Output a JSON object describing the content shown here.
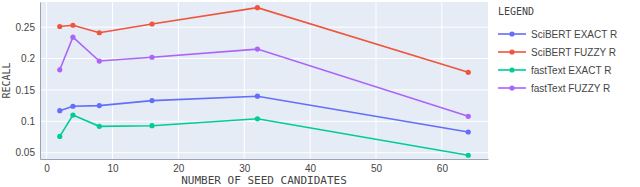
{
  "chart_data": {
    "type": "line",
    "x_label": "NUMBER OF SEED CANDIDATES",
    "y_label": "RECALL",
    "legend_title": "LEGEND",
    "legend": "right",
    "grid": true,
    "marker": "circle",
    "x": [
      2,
      4,
      8,
      16,
      32,
      64
    ],
    "series": [
      {
        "name": "SciBERT EXACT R",
        "color": "#636efa",
        "values": [
          0.117,
          0.124,
          0.125,
          0.133,
          0.14,
          0.083
        ]
      },
      {
        "name": "SciBERT FUZZY R",
        "color": "#ef553b",
        "values": [
          0.251,
          0.253,
          0.241,
          0.255,
          0.281,
          0.178
        ]
      },
      {
        "name": "fastText EXACT R",
        "color": "#00cc96",
        "values": [
          0.076,
          0.11,
          0.092,
          0.093,
          0.104,
          0.046
        ]
      },
      {
        "name": "fastText FUZZY R",
        "color": "#ab63fa",
        "values": [
          0.182,
          0.234,
          0.196,
          0.202,
          0.215,
          0.108
        ]
      }
    ],
    "xlim": [
      -1,
      67
    ],
    "xticks": [
      0,
      10,
      20,
      30,
      40,
      50,
      60
    ],
    "ylim": [
      0.04,
      0.29
    ],
    "yticks": [
      0.05,
      0.1,
      0.15,
      0.2,
      0.25
    ]
  }
}
